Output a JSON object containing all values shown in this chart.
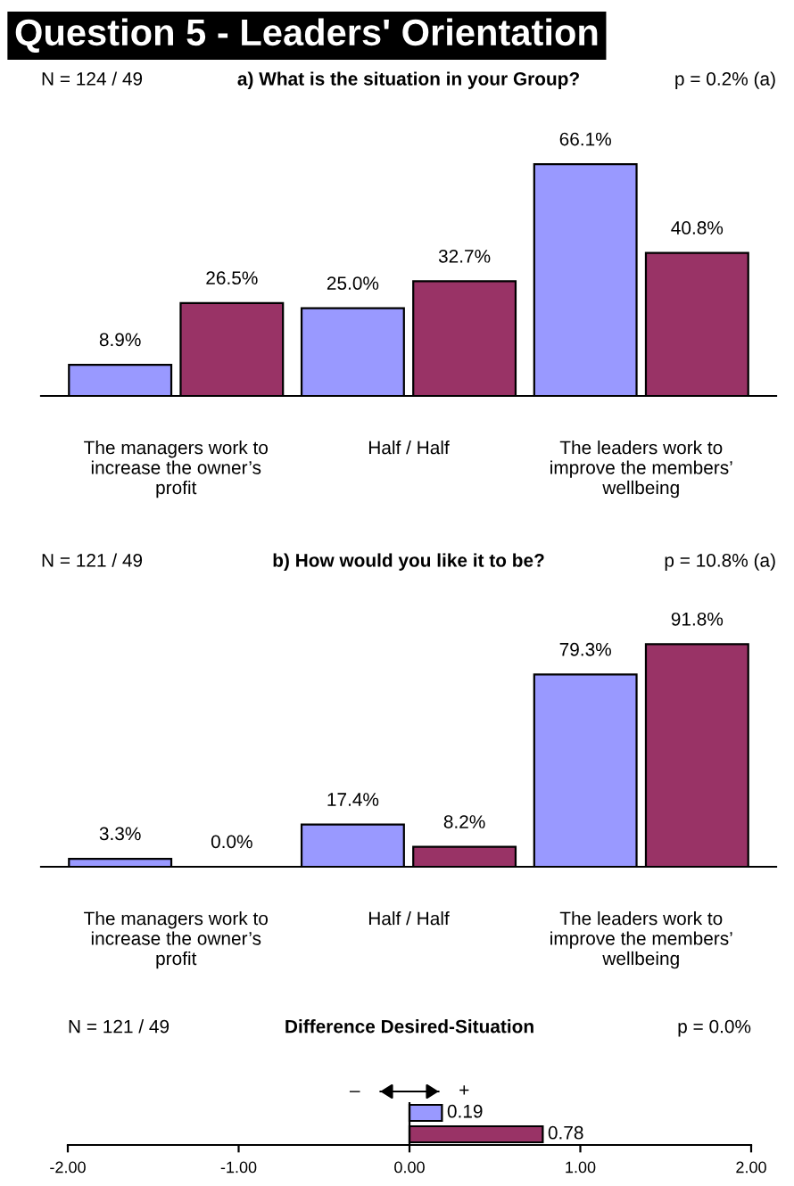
{
  "chart_data": [
    {
      "type": "bar",
      "title": "Question 5 - Leaders' Orientation",
      "subtitle": "a) What is the situation in your Group?",
      "categories": [
        "The managers work to\nincrease the owner’s\nprofit",
        "Half / Half",
        "The leaders work to\nimprove the members’\nwellbeing"
      ],
      "series": [
        {
          "color": "#9999ff",
          "values": [
            8.9,
            25.0,
            66.1
          ],
          "value_labels": [
            "8.9%",
            "25.0%",
            "66.1%"
          ]
        },
        {
          "color": "#993366",
          "values": [
            26.5,
            32.7,
            40.8
          ],
          "value_labels": [
            "26.5%",
            "32.7%",
            "40.8%"
          ]
        }
      ],
      "annotations": [
        "N = 124 / 49",
        "p = 0.2% (a)"
      ],
      "grid": false
    },
    {
      "type": "bar",
      "title": "b) How would you like it to be?",
      "categories": [
        "The managers work to\nincrease the owner’s\nprofit",
        "Half / Half",
        "The leaders work to\nimprove the members’\nwellbeing"
      ],
      "series": [
        {
          "color": "#9999ff",
          "values": [
            3.3,
            17.4,
            79.3
          ],
          "value_labels": [
            "3.3%",
            "17.4%",
            "79.3%"
          ]
        },
        {
          "color": "#993366",
          "values": [
            0.0,
            8.2,
            91.8
          ],
          "value_labels": [
            "0.0%",
            "8.2%",
            "91.8%"
          ]
        }
      ],
      "annotations": [
        "N = 121 / 49",
        "p = 10.8% (a)"
      ],
      "grid": false
    },
    {
      "type": "bar",
      "orientation": "horizontal",
      "title": "Difference Desired-Situation",
      "categories": [
        null,
        null
      ],
      "values": [
        0.19,
        0.78
      ],
      "colors": [
        "#9999ff",
        "#993366"
      ],
      "data_labels": true,
      "xlim": [
        -2,
        2
      ],
      "xticks": [
        {
          "value": -2,
          "label": "-2.00"
        },
        {
          "value": -1,
          "label": "-1.00"
        },
        {
          "value": 0,
          "label": "0.00"
        },
        {
          "value": 1,
          "label": "1.00"
        },
        {
          "value": 2,
          "label": "2.00"
        }
      ],
      "ref_lines": [
        {
          "axis": "x",
          "value": 0,
          "color": "#000000"
        }
      ],
      "annotations": [
        "N = 121 / 49",
        "p = 0.0%",
        "–",
        "+"
      ],
      "grid": false
    }
  ]
}
